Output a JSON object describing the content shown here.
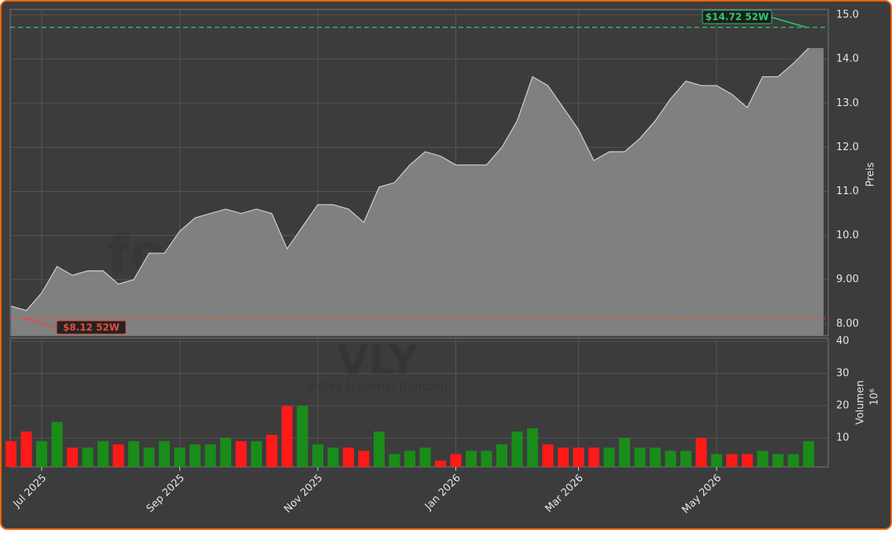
{
  "chart_data": [
    {
      "type": "area",
      "color": "#808080",
      "line_color": "#cfcfcf",
      "y_label": "Preis",
      "values": [
        8.4,
        8.3,
        8.7,
        9.3,
        9.1,
        9.2,
        9.2,
        8.9,
        9.0,
        9.6,
        9.6,
        10.1,
        10.4,
        10.5,
        10.6,
        10.5,
        10.6,
        10.5,
        9.7,
        10.2,
        10.7,
        10.7,
        10.6,
        10.3,
        11.1,
        11.2,
        11.6,
        11.9,
        11.8,
        11.6,
        11.6,
        11.6,
        12.0,
        12.6,
        13.6,
        13.4,
        12.9,
        12.4,
        11.7,
        11.9,
        11.9,
        12.2,
        12.6,
        13.1,
        13.5,
        13.4,
        13.4,
        13.2,
        12.9,
        13.6,
        13.6,
        13.9,
        14.25
      ],
      "ylim": [
        7.73,
        15.125
      ],
      "yticks": [
        {
          "value": 8,
          "label": "8.00"
        },
        {
          "value": 9,
          "label": "9.00"
        },
        {
          "value": 10,
          "label": "10.0"
        },
        {
          "value": 11,
          "label": "11.0"
        },
        {
          "value": 12,
          "label": "12.0"
        },
        {
          "value": 13,
          "label": "13.0"
        },
        {
          "value": 14,
          "label": "14.0"
        },
        {
          "value": 15,
          "label": "15.0"
        }
      ],
      "grid": true,
      "high_52w": {
        "value": 14.72,
        "label": "$14.72 52W",
        "color": "#2ecc71"
      },
      "low_52w": {
        "value": 8.12,
        "label": "$8.12 52W",
        "color": "#e74c3c"
      },
      "watermark": "forexsignale.trade"
    },
    {
      "type": "bar",
      "y_label": "Volumen",
      "y_unit": "10⁶",
      "up_color": "#1a8c1a",
      "down_color": "#ff1a1a",
      "ticker": "VLY",
      "company": "Valley National Bancorp",
      "categories": [
        null,
        null,
        "Jul 2025",
        null,
        null,
        null,
        null,
        null,
        null,
        null,
        null,
        "Sep 2025",
        null,
        null,
        null,
        null,
        null,
        null,
        null,
        null,
        "Nov 2025",
        null,
        null,
        null,
        null,
        null,
        null,
        null,
        null,
        "Jan 2026",
        null,
        null,
        null,
        null,
        null,
        null,
        null,
        "Mar 2026",
        null,
        null,
        null,
        null,
        null,
        null,
        null,
        null,
        "May 2026",
        null,
        null,
        null,
        null,
        null,
        null
      ],
      "values": [
        9,
        12,
        9,
        15,
        7,
        7,
        9,
        8,
        9,
        7,
        9,
        7,
        8,
        8,
        10,
        9,
        9,
        11,
        20,
        20,
        8,
        7,
        7,
        6,
        12,
        5,
        6,
        7,
        3,
        5,
        6,
        6,
        8,
        12,
        13,
        8,
        7,
        7,
        7,
        7,
        10,
        7,
        7,
        6,
        6,
        10,
        5,
        5,
        5,
        6,
        5,
        5,
        9
      ],
      "ylim": [
        1,
        41
      ],
      "yticks": [
        10,
        20,
        30,
        40
      ],
      "grid": true
    }
  ]
}
